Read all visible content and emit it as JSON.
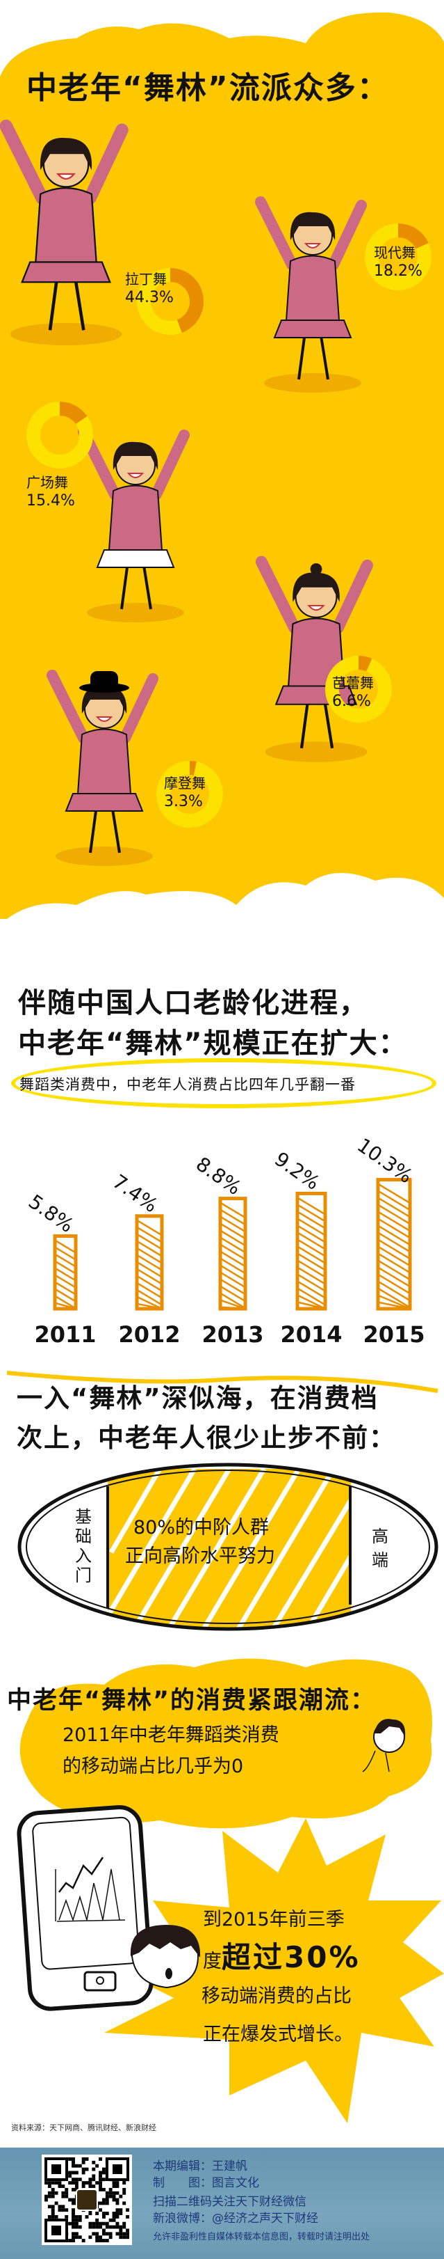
{
  "colors": {
    "yellow": "#fdc800",
    "ring": "#fde200",
    "orange": "#e88c00",
    "pink": "#cc6a86",
    "skin": "#f3cc98",
    "hair": "#231815",
    "footer": "#6f9fb8",
    "footer_text": "#1d3a78"
  },
  "section1": {
    "title": "中老年“舞林”流派众多：",
    "dances": [
      {
        "name": "拉丁舞",
        "percent_label": "44.3%",
        "share": 44.3
      },
      {
        "name": "现代舞",
        "percent_label": "18.2%",
        "share": 18.2
      },
      {
        "name": "广场舞",
        "percent_label": "15.4%",
        "share": 15.4
      },
      {
        "name": "芭蕾舞",
        "percent_label": "6.6%",
        "share": 6.6
      },
      {
        "name": "摩登舞",
        "percent_label": "3.3%",
        "share": 3.3
      }
    ]
  },
  "section2": {
    "title_line1": "伴随中国人口老龄化进程，",
    "title_line2": "中老年“舞林”规模正在扩大：",
    "subtitle": "舞蹈类消费中，中老年人消费占比四年几乎翻一番"
  },
  "chart_data": {
    "type": "bar",
    "categories": [
      "2011",
      "2012",
      "2013",
      "2014",
      "2015"
    ],
    "values": [
      5.8,
      7.4,
      8.8,
      9.2,
      10.3
    ],
    "value_labels": [
      "5.8%",
      "7.4%",
      "8.8%",
      "9.2%",
      "10.3%"
    ],
    "title": "",
    "xlabel": "",
    "ylabel": "",
    "grid": false
  },
  "section3": {
    "title_line1": "一入“舞林”深似海，在消费档",
    "title_line2": "次上，中老年人很少止步不前：",
    "left_label": "基础入门",
    "center_line1": "80%的中阶人群",
    "center_line2": "正向高阶水平努力",
    "right_label": "高端"
  },
  "section4": {
    "title": "中老年“舞林”的消费紧跟潮流：",
    "line1": "2011年中老年舞蹈类消费",
    "line2": "的移动端占比几乎为0"
  },
  "section5": {
    "line1": "到2015年前三季",
    "line2_prefix": "度",
    "line2_bold": "超过30%",
    "line3": "移动端消费的占比",
    "line4": "正在爆发式增长。"
  },
  "source": "资料来源：天下网商、腾讯财经、新浪财经",
  "footer": {
    "editor": "本期编辑：王建帆",
    "graphics_label": "制　　图：",
    "graphics": "图言文化",
    "scan": "扫描二维码关注天下财经微信",
    "weibo": "新浪微博：@经济之声天下财经",
    "notice": "允许非盈利性自媒体转载本信息图，转载时请注明出处"
  }
}
